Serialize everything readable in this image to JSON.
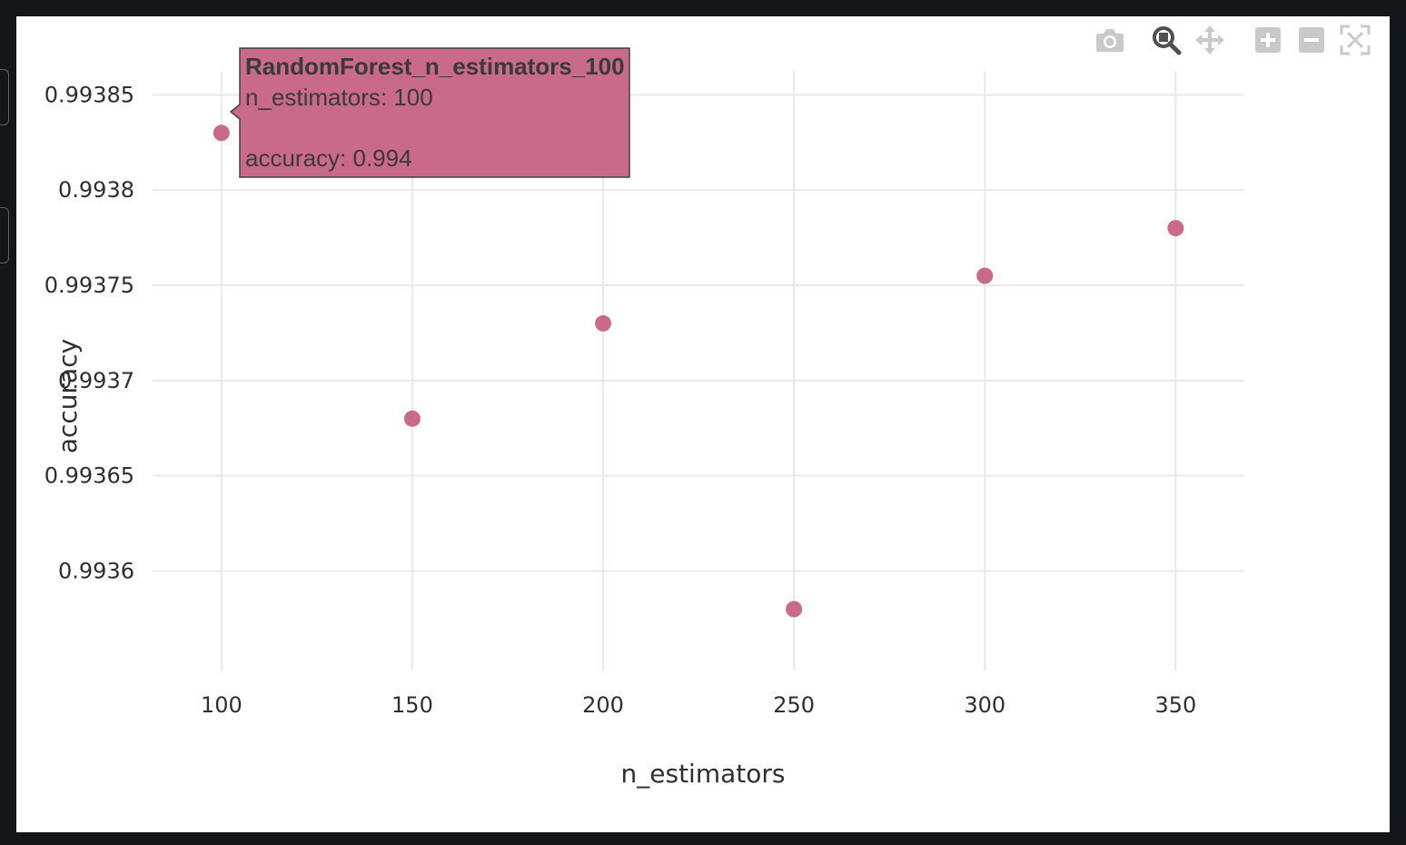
{
  "toolbar": {
    "camera": "camera-icon",
    "zoom": "zoom-icon",
    "pan": "pan-icon",
    "zoom_in": "zoom-in-icon",
    "zoom_out": "zoom-out-icon",
    "autoscale": "autoscale-icon"
  },
  "colors": {
    "marker": "#c96a88",
    "grid": "#e9e9e9",
    "tooltip_bg": "#c96a88",
    "tooltip_border": "#404040",
    "icon_inactive": "#c9c9c9",
    "icon_active": "#505050"
  },
  "tooltip": {
    "title": "RandomForest_n_estimators_100",
    "line1": "n_estimators: 100",
    "line2": "accuracy: 0.994"
  },
  "chart_data": {
    "type": "scatter",
    "title": "",
    "xlabel": "n_estimators",
    "ylabel": "accuracy",
    "x": [
      100,
      150,
      200,
      250,
      300,
      350
    ],
    "y": [
      0.99383,
      0.99368,
      0.99373,
      0.99358,
      0.993755,
      0.99378
    ],
    "xlim": [
      81,
      368
    ],
    "ylim": [
      0.993543,
      0.993874
    ],
    "x_ticks": [
      100,
      150,
      200,
      250,
      300,
      350
    ],
    "x_tick_labels": [
      "100",
      "150",
      "200",
      "250",
      "300",
      "350"
    ],
    "y_ticks": [
      0.9936,
      0.99365,
      0.9937,
      0.99375,
      0.9938,
      0.99385
    ],
    "y_tick_labels": [
      "0.9936",
      "0.99365",
      "0.9937",
      "0.99375",
      "0.9938",
      "0.99385"
    ],
    "grid": true,
    "legend": "none",
    "hovered_point_index": 0
  }
}
